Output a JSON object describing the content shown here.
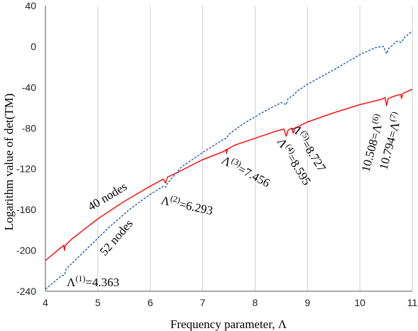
{
  "chart_data": {
    "type": "line",
    "xlabel": "Frequency parameter, Λ",
    "ylabel": "Logarithm value of  det(TM)",
    "xlim": [
      4,
      11
    ],
    "ylim": [
      -240,
      40
    ],
    "x_ticks": [
      4,
      5,
      6,
      7,
      8,
      9,
      10,
      11
    ],
    "y_ticks": [
      40,
      0,
      -40,
      -80,
      -120,
      -160,
      -200,
      -240
    ],
    "grid": "vertical",
    "series": [
      {
        "name": "40 nodes",
        "color": "#ff0000",
        "style": "solid",
        "x": [
          4.0,
          4.3,
          4.35,
          4.363,
          4.38,
          4.5,
          5.0,
          5.5,
          6.0,
          6.25,
          6.293,
          6.33,
          6.5,
          7.0,
          7.4,
          7.45,
          7.456,
          7.47,
          7.6,
          8.0,
          8.4,
          8.55,
          8.595,
          8.63,
          8.7,
          8.727,
          8.76,
          9.0,
          9.5,
          10.0,
          10.4,
          10.48,
          10.508,
          10.54,
          10.7,
          10.78,
          10.794,
          10.82,
          11.0
        ],
        "y": [
          -210,
          -197,
          -195,
          -200,
          -195,
          -189,
          -169,
          -152,
          -137,
          -130,
          -134,
          -128,
          -124,
          -111,
          -103,
          -101,
          -105,
          -101,
          -97,
          -90,
          -83,
          -81,
          -88,
          -82,
          -80,
          -85,
          -80,
          -74,
          -65,
          -57,
          -52,
          -50,
          -58,
          -51,
          -48,
          -47,
          -51,
          -46,
          -42
        ]
      },
      {
        "name": "52 nodes",
        "color": "#1f5fa8",
        "style": "dashed",
        "x": [
          4.0,
          4.3,
          4.363,
          4.4,
          4.8,
          5.2,
          5.6,
          6.0,
          6.25,
          6.293,
          6.33,
          6.6,
          7.0,
          7.4,
          7.456,
          7.5,
          7.8,
          8.2,
          8.5,
          8.595,
          8.63,
          8.727,
          8.8,
          9.0,
          9.5,
          10.0,
          10.3,
          10.45,
          10.508,
          10.55,
          10.7,
          10.794,
          10.85,
          11.0
        ],
        "y": [
          -238,
          -225,
          -224,
          -218,
          -198,
          -178,
          -160,
          -145,
          -137,
          -138,
          -134,
          -118,
          -104,
          -91,
          -90,
          -86,
          -75,
          -63,
          -55,
          -57,
          -51,
          -48,
          -44,
          -37,
          -23,
          -8,
          -1,
          0,
          -7,
          -2,
          5,
          4,
          9,
          15
        ]
      }
    ],
    "annotations": {
      "series_40": "40 nodes",
      "series_52": "52 nodes",
      "l1": "Λ(1)=4.363",
      "l2": "Λ(2)=6.293",
      "l3": "Λ(3)=7.456",
      "l4": "Λ(4)=8.595",
      "l5": "Λ(5)=8.727",
      "l6": "10.508=Λ(6)",
      "l7": "10.794=Λ(7)"
    }
  }
}
